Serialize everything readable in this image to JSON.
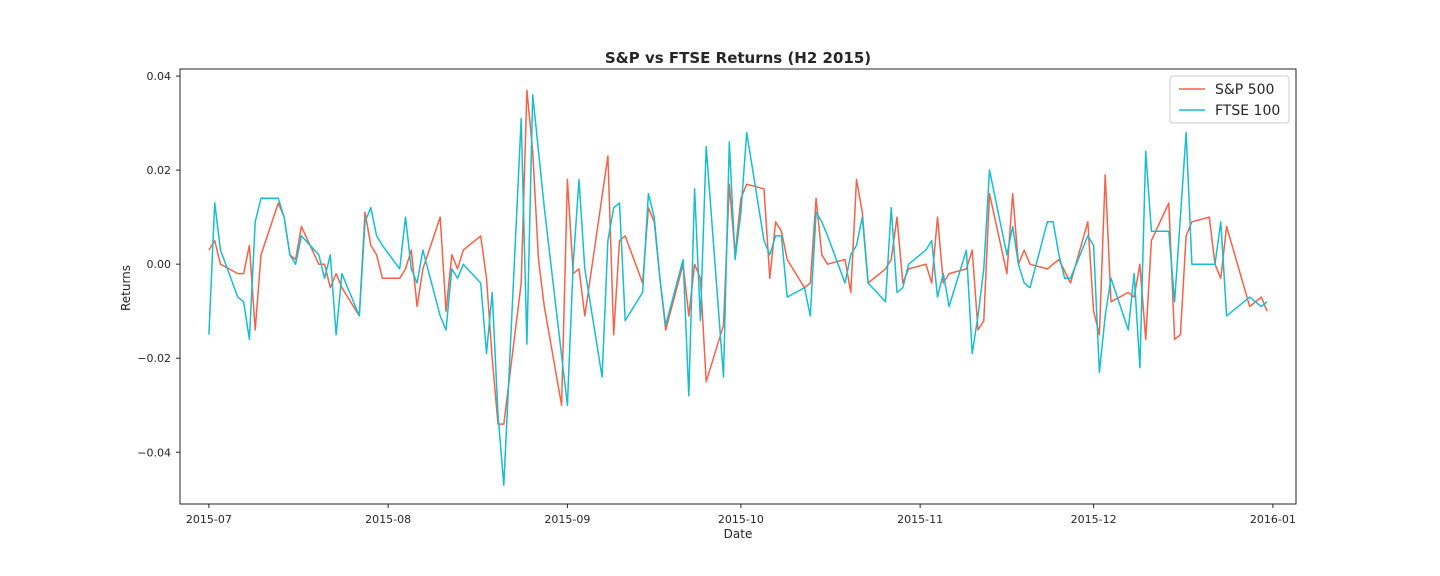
{
  "chart_data": {
    "type": "line",
    "title": "S&P vs FTSE Returns (H2 2015)",
    "xlabel": "Date",
    "ylabel": "Returns",
    "xlim": [
      "2015-06-26",
      "2016-01-05"
    ],
    "ylim": [
      -0.051,
      0.0415
    ],
    "grid": false,
    "legend_position": "top-right",
    "x_ticks": [
      "2015-07-01",
      "2015-08-01",
      "2015-09-01",
      "2015-10-01",
      "2015-11-01",
      "2015-12-01",
      "2016-01-01"
    ],
    "x_tick_labels": [
      "2015-07",
      "2015-08",
      "2015-09",
      "2015-10",
      "2015-11",
      "2015-12",
      "2016-01"
    ],
    "y_ticks": [
      0.04,
      0.02,
      0.0,
      -0.02,
      -0.04
    ],
    "y_tick_labels": [
      "0.04",
      "0.02",
      "0.00",
      "−0.02",
      "−0.04"
    ],
    "series": [
      {
        "name": "S&P 500",
        "color": "#f4624a",
        "x": [
          "2015-07-01",
          "2015-07-02",
          "2015-07-03",
          "2015-07-06",
          "2015-07-07",
          "2015-07-08",
          "2015-07-09",
          "2015-07-10",
          "2015-07-13",
          "2015-07-14",
          "2015-07-15",
          "2015-07-16",
          "2015-07-17",
          "2015-07-20",
          "2015-07-21",
          "2015-07-22",
          "2015-07-23",
          "2015-07-24",
          "2015-07-27",
          "2015-07-28",
          "2015-07-29",
          "2015-07-30",
          "2015-07-31",
          "2015-08-03",
          "2015-08-04",
          "2015-08-05",
          "2015-08-06",
          "2015-08-07",
          "2015-08-10",
          "2015-08-11",
          "2015-08-12",
          "2015-08-13",
          "2015-08-14",
          "2015-08-17",
          "2015-08-18",
          "2015-08-19",
          "2015-08-20",
          "2015-08-21",
          "2015-08-24",
          "2015-08-25",
          "2015-08-26",
          "2015-08-27",
          "2015-08-28",
          "2015-08-31",
          "2015-09-01",
          "2015-09-02",
          "2015-09-03",
          "2015-09-04",
          "2015-09-08",
          "2015-09-09",
          "2015-09-10",
          "2015-09-11",
          "2015-09-14",
          "2015-09-15",
          "2015-09-16",
          "2015-09-17",
          "2015-09-18",
          "2015-09-21",
          "2015-09-22",
          "2015-09-23",
          "2015-09-24",
          "2015-09-25",
          "2015-09-28",
          "2015-09-29",
          "2015-09-30",
          "2015-10-01",
          "2015-10-02",
          "2015-10-05",
          "2015-10-06",
          "2015-10-07",
          "2015-10-08",
          "2015-10-09",
          "2015-10-12",
          "2015-10-13",
          "2015-10-14",
          "2015-10-15",
          "2015-10-16",
          "2015-10-19",
          "2015-10-20",
          "2015-10-21",
          "2015-10-22",
          "2015-10-23",
          "2015-10-26",
          "2015-10-27",
          "2015-10-28",
          "2015-10-29",
          "2015-10-30",
          "2015-11-02",
          "2015-11-03",
          "2015-11-04",
          "2015-11-05",
          "2015-11-06",
          "2015-11-09",
          "2015-11-10",
          "2015-11-11",
          "2015-11-12",
          "2015-11-13",
          "2015-11-16",
          "2015-11-17",
          "2015-11-18",
          "2015-11-19",
          "2015-11-20",
          "2015-11-23",
          "2015-11-24",
          "2015-11-25",
          "2015-11-27",
          "2015-11-30",
          "2015-12-01",
          "2015-12-02",
          "2015-12-03",
          "2015-12-04",
          "2015-12-07",
          "2015-12-08",
          "2015-12-09",
          "2015-12-10",
          "2015-12-11",
          "2015-12-14",
          "2015-12-15",
          "2015-12-16",
          "2015-12-17",
          "2015-12-18",
          "2015-12-21",
          "2015-12-22",
          "2015-12-23",
          "2015-12-24",
          "2015-12-28",
          "2015-12-29",
          "2015-12-30",
          "2015-12-31"
        ],
        "y": [
          0.003,
          0.005,
          0.0,
          -0.002,
          -0.002,
          0.004,
          -0.014,
          0.002,
          0.013,
          0.01,
          0.002,
          0.001,
          0.008,
          0.0,
          0.0,
          -0.005,
          -0.002,
          -0.005,
          -0.011,
          0.011,
          0.004,
          0.002,
          -0.003,
          -0.003,
          -0.001,
          0.003,
          -0.009,
          -0.001,
          0.01,
          -0.01,
          0.002,
          -0.001,
          0.003,
          0.006,
          -0.003,
          -0.02,
          -0.034,
          -0.034,
          -0.004,
          0.037,
          0.024,
          0.001,
          -0.009,
          -0.03,
          0.018,
          -0.002,
          -0.001,
          -0.011,
          0.023,
          -0.015,
          0.005,
          0.006,
          -0.004,
          0.012,
          0.009,
          -0.003,
          -0.014,
          0.0,
          -0.011,
          0.0,
          -0.003,
          -0.025,
          -0.013,
          0.017,
          0.002,
          0.014,
          0.017,
          0.016,
          -0.003,
          0.009,
          0.007,
          0.001,
          -0.005,
          -0.004,
          0.014,
          0.002,
          0.0,
          0.001,
          -0.006,
          0.018,
          0.011,
          -0.004,
          -0.001,
          0.001,
          0.01,
          -0.004,
          -0.001,
          0.0,
          -0.004,
          0.01,
          -0.004,
          -0.002,
          -0.001,
          0.003,
          -0.014,
          -0.012,
          0.015,
          -0.002,
          0.015,
          0.0,
          0.003,
          0.0,
          -0.001,
          0.0,
          0.001,
          -0.004,
          0.009,
          -0.01,
          -0.015,
          0.019,
          -0.008,
          -0.006,
          -0.007,
          0.0,
          -0.016,
          0.005,
          0.013,
          -0.016,
          -0.015,
          0.006,
          0.009,
          0.01,
          0.0,
          -0.003,
          0.008,
          -0.009,
          -0.008,
          -0.007,
          -0.01
        ]
      },
      {
        "name": "FTSE 100",
        "color": "#17becf",
        "x": [
          "2015-07-01",
          "2015-07-02",
          "2015-07-03",
          "2015-07-06",
          "2015-07-07",
          "2015-07-08",
          "2015-07-09",
          "2015-07-10",
          "2015-07-13",
          "2015-07-14",
          "2015-07-15",
          "2015-07-16",
          "2015-07-17",
          "2015-07-20",
          "2015-07-21",
          "2015-07-22",
          "2015-07-23",
          "2015-07-24",
          "2015-07-27",
          "2015-07-28",
          "2015-07-29",
          "2015-07-30",
          "2015-07-31",
          "2015-08-03",
          "2015-08-04",
          "2015-08-05",
          "2015-08-06",
          "2015-08-07",
          "2015-08-10",
          "2015-08-11",
          "2015-08-12",
          "2015-08-13",
          "2015-08-14",
          "2015-08-17",
          "2015-08-18",
          "2015-08-19",
          "2015-08-20",
          "2015-08-21",
          "2015-08-24",
          "2015-08-25",
          "2015-08-26",
          "2015-08-27",
          "2015-08-28",
          "2015-09-01",
          "2015-09-02",
          "2015-09-03",
          "2015-09-04",
          "2015-09-07",
          "2015-09-08",
          "2015-09-09",
          "2015-09-10",
          "2015-09-11",
          "2015-09-14",
          "2015-09-15",
          "2015-09-16",
          "2015-09-17",
          "2015-09-18",
          "2015-09-21",
          "2015-09-22",
          "2015-09-23",
          "2015-09-24",
          "2015-09-25",
          "2015-09-28",
          "2015-09-29",
          "2015-09-30",
          "2015-10-01",
          "2015-10-02",
          "2015-10-05",
          "2015-10-06",
          "2015-10-07",
          "2015-10-08",
          "2015-10-09",
          "2015-10-12",
          "2015-10-13",
          "2015-10-14",
          "2015-10-15",
          "2015-10-16",
          "2015-10-19",
          "2015-10-20",
          "2015-10-21",
          "2015-10-22",
          "2015-10-23",
          "2015-10-26",
          "2015-10-27",
          "2015-10-28",
          "2015-10-29",
          "2015-10-30",
          "2015-11-02",
          "2015-11-03",
          "2015-11-04",
          "2015-11-05",
          "2015-11-06",
          "2015-11-09",
          "2015-11-10",
          "2015-11-11",
          "2015-11-12",
          "2015-11-13",
          "2015-11-16",
          "2015-11-17",
          "2015-11-18",
          "2015-11-19",
          "2015-11-20",
          "2015-11-23",
          "2015-11-24",
          "2015-11-25",
          "2015-11-26",
          "2015-11-27",
          "2015-11-30",
          "2015-12-01",
          "2015-12-02",
          "2015-12-03",
          "2015-12-04",
          "2015-12-07",
          "2015-12-08",
          "2015-12-09",
          "2015-12-10",
          "2015-12-11",
          "2015-12-14",
          "2015-12-15",
          "2015-12-16",
          "2015-12-17",
          "2015-12-18",
          "2015-12-21",
          "2015-12-22",
          "2015-12-23",
          "2015-12-24",
          "2015-12-28",
          "2015-12-29",
          "2015-12-30",
          "2015-12-31"
        ],
        "y": [
          -0.015,
          0.013,
          0.003,
          -0.007,
          -0.008,
          -0.016,
          0.009,
          0.014,
          0.014,
          0.01,
          0.002,
          0.0,
          0.006,
          0.002,
          -0.003,
          0.002,
          -0.015,
          -0.002,
          -0.011,
          0.009,
          0.012,
          0.006,
          0.004,
          -0.001,
          0.01,
          -0.001,
          -0.004,
          0.003,
          -0.011,
          -0.014,
          -0.001,
          -0.003,
          0.0,
          -0.004,
          -0.019,
          -0.006,
          -0.032,
          -0.047,
          0.031,
          -0.017,
          0.036,
          0.024,
          0.012,
          -0.03,
          0.0,
          0.018,
          -0.001,
          -0.024,
          0.005,
          0.012,
          0.013,
          -0.012,
          -0.006,
          0.015,
          0.01,
          -0.003,
          -0.013,
          0.001,
          -0.028,
          0.016,
          -0.012,
          0.025,
          -0.024,
          0.026,
          0.001,
          0.011,
          0.028,
          0.005,
          0.002,
          0.006,
          0.006,
          -0.007,
          -0.005,
          -0.011,
          0.011,
          0.009,
          0.006,
          -0.004,
          0.002,
          0.004,
          0.01,
          -0.004,
          -0.008,
          0.012,
          -0.006,
          -0.005,
          0.0,
          0.003,
          0.005,
          -0.007,
          -0.002,
          -0.009,
          0.003,
          -0.019,
          -0.011,
          -0.001,
          0.02,
          0.002,
          0.008,
          0.0,
          -0.004,
          -0.005,
          0.009,
          0.009,
          0.002,
          -0.003,
          -0.003,
          0.006,
          0.004,
          -0.023,
          -0.011,
          -0.003,
          -0.014,
          -0.002,
          -0.022,
          0.024,
          0.007,
          0.007,
          -0.008,
          0.01,
          0.028,
          0.0,
          0.0,
          0.0,
          0.009,
          -0.011,
          -0.007,
          -0.008,
          -0.009,
          -0.008
        ]
      }
    ]
  }
}
